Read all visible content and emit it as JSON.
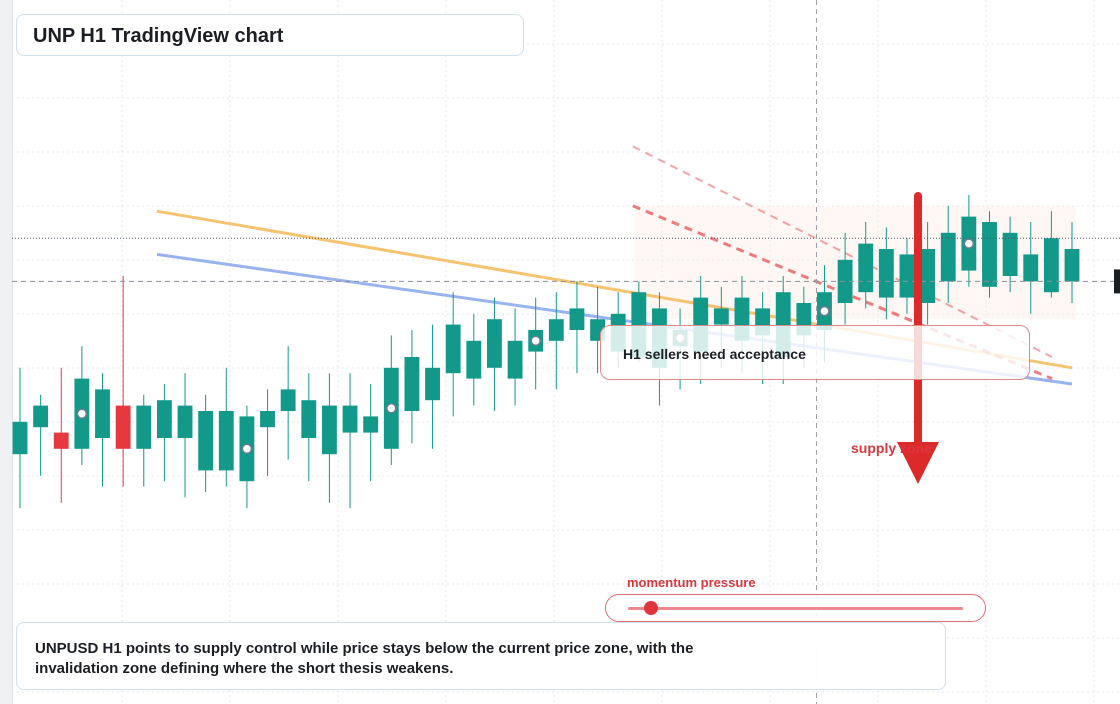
{
  "title": "UNP H1 TradingView chart",
  "signal_text": "H1 sellers need acceptance",
  "zone_label": "supply zone",
  "meter": {
    "label": "momentum pressure",
    "value": 0.07
  },
  "summary": "UNPUSD H1 points to supply control while price stays below the current price zone, with the invalidation zone defining where the short thesis weakens.",
  "colors": {
    "up": "#13998a",
    "down": "#e5393f",
    "ma_fast": "#f6c06a",
    "ma_slow": "#93aff0",
    "arrow": "#dc2a2a"
  },
  "chart_data": {
    "type": "candlestick",
    "timeframe": "H1",
    "y_range": [
      0,
      100
    ],
    "current_price": 59,
    "crosshair_index": 39,
    "candles": [
      {
        "o": 27,
        "h": 43,
        "l": 17,
        "c": 33
      },
      {
        "o": 32,
        "h": 38,
        "l": 23,
        "c": 36
      },
      {
        "o": 31,
        "h": 43,
        "l": 18,
        "c": 28
      },
      {
        "o": 28,
        "h": 47,
        "l": 25,
        "c": 41
      },
      {
        "o": 30,
        "h": 42,
        "l": 21,
        "c": 39
      },
      {
        "o": 36,
        "h": 60,
        "l": 21,
        "c": 28
      },
      {
        "o": 28,
        "h": 38,
        "l": 21,
        "c": 36
      },
      {
        "o": 30,
        "h": 40,
        "l": 22,
        "c": 37
      },
      {
        "o": 30,
        "h": 42,
        "l": 19,
        "c": 36
      },
      {
        "o": 24,
        "h": 38,
        "l": 20,
        "c": 35
      },
      {
        "o": 24,
        "h": 43,
        "l": 21,
        "c": 35
      },
      {
        "o": 22,
        "h": 36,
        "l": 17,
        "c": 34
      },
      {
        "o": 32,
        "h": 39,
        "l": 23,
        "c": 35
      },
      {
        "o": 35,
        "h": 47,
        "l": 26,
        "c": 39
      },
      {
        "o": 30,
        "h": 42,
        "l": 22,
        "c": 37
      },
      {
        "o": 27,
        "h": 42,
        "l": 18,
        "c": 36
      },
      {
        "o": 31,
        "h": 42,
        "l": 17,
        "c": 36
      },
      {
        "o": 31,
        "h": 40,
        "l": 22,
        "c": 34
      },
      {
        "o": 28,
        "h": 49,
        "l": 25,
        "c": 43
      },
      {
        "o": 35,
        "h": 50,
        "l": 29,
        "c": 45
      },
      {
        "o": 37,
        "h": 51,
        "l": 28,
        "c": 43
      },
      {
        "o": 42,
        "h": 57,
        "l": 34,
        "c": 51
      },
      {
        "o": 41,
        "h": 53,
        "l": 36,
        "c": 48
      },
      {
        "o": 43,
        "h": 56,
        "l": 35,
        "c": 52
      },
      {
        "o": 41,
        "h": 54,
        "l": 36,
        "c": 48
      },
      {
        "o": 46,
        "h": 56,
        "l": 39,
        "c": 50
      },
      {
        "o": 48,
        "h": 57,
        "l": 39,
        "c": 52
      },
      {
        "o": 50,
        "h": 59,
        "l": 42,
        "c": 54
      },
      {
        "o": 48,
        "h": 58,
        "l": 42,
        "c": 52
      },
      {
        "o": 46,
        "h": 57,
        "l": 43,
        "c": 53
      },
      {
        "o": 45,
        "h": 59,
        "l": 44,
        "c": 57
      },
      {
        "o": 43,
        "h": 57,
        "l": 36,
        "c": 54
      },
      {
        "o": 47,
        "h": 54,
        "l": 39,
        "c": 50
      },
      {
        "o": 46,
        "h": 60,
        "l": 40,
        "c": 56
      },
      {
        "o": 51,
        "h": 58,
        "l": 43,
        "c": 54
      },
      {
        "o": 48,
        "h": 60,
        "l": 42,
        "c": 56
      },
      {
        "o": 49,
        "h": 57,
        "l": 40,
        "c": 54
      },
      {
        "o": 45,
        "h": 60,
        "l": 40,
        "c": 57
      },
      {
        "o": 49,
        "h": 58,
        "l": 43,
        "c": 55
      },
      {
        "o": 50,
        "h": 62,
        "l": 44,
        "c": 57
      },
      {
        "o": 55,
        "h": 68,
        "l": 51,
        "c": 63
      },
      {
        "o": 57,
        "h": 70,
        "l": 54,
        "c": 66
      },
      {
        "o": 56,
        "h": 69,
        "l": 52,
        "c": 65
      },
      {
        "o": 56,
        "h": 67,
        "l": 53,
        "c": 64
      },
      {
        "o": 55,
        "h": 70,
        "l": 51,
        "c": 65
      },
      {
        "o": 59,
        "h": 73,
        "l": 55,
        "c": 68
      },
      {
        "o": 61,
        "h": 75,
        "l": 58,
        "c": 71
      },
      {
        "o": 58,
        "h": 72,
        "l": 56,
        "c": 70
      },
      {
        "o": 60,
        "h": 71,
        "l": 57,
        "c": 68
      },
      {
        "o": 59,
        "h": 70,
        "l": 53,
        "c": 64
      },
      {
        "o": 57,
        "h": 72,
        "l": 56,
        "c": 67
      },
      {
        "o": 59,
        "h": 70,
        "l": 55,
        "c": 65
      }
    ],
    "lines": [
      {
        "name": "fast",
        "points": [
          [
            0,
            72
          ],
          [
            51,
            43
          ]
        ]
      },
      {
        "name": "slow",
        "points": [
          [
            0,
            64
          ],
          [
            51,
            40
          ]
        ]
      }
    ],
    "dashed_lines": [
      {
        "points": [
          [
            30,
            84
          ],
          [
            51,
            45
          ]
        ]
      },
      {
        "points": [
          [
            30,
            73
          ],
          [
            51,
            41
          ]
        ]
      }
    ],
    "markers": [
      3,
      11,
      18,
      25,
      32,
      39,
      46
    ]
  }
}
